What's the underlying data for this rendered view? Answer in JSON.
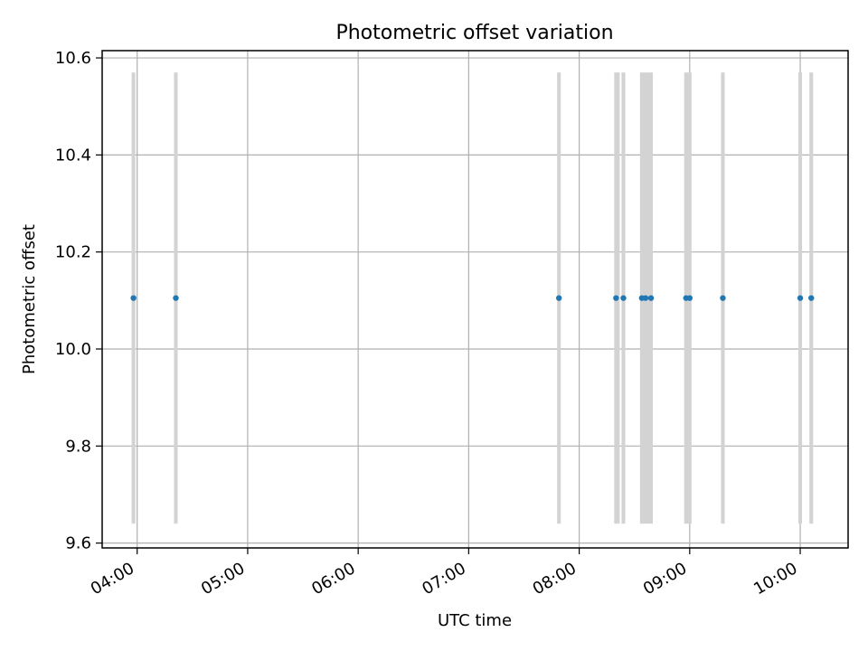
{
  "chart_data": {
    "type": "scatter",
    "title": "Photometric offset variation",
    "xlabel": "UTC time",
    "ylabel": "Photometric offset",
    "x_axis_type": "time",
    "xlim": [
      "03:41",
      "10:26"
    ],
    "ylim": [
      9.59,
      10.615
    ],
    "x_ticks": [
      "04:00",
      "05:00",
      "06:00",
      "07:00",
      "08:00",
      "09:00",
      "10:00"
    ],
    "y_ticks": [
      9.6,
      9.8,
      10.0,
      10.2,
      10.4,
      10.6
    ],
    "y_tick_labels": [
      "9.6",
      "9.8",
      "10.0",
      "10.2",
      "10.4",
      "10.6"
    ],
    "grid": true,
    "points": [
      {
        "x": "03:58",
        "y": 10.105
      },
      {
        "x": "04:21",
        "y": 10.105
      },
      {
        "x": "07:49",
        "y": 10.105
      },
      {
        "x": "08:20",
        "y": 10.105
      },
      {
        "x": "08:24",
        "y": 10.105
      },
      {
        "x": "08:34",
        "y": 10.105
      },
      {
        "x": "08:36",
        "y": 10.105
      },
      {
        "x": "08:39",
        "y": 10.105
      },
      {
        "x": "08:58",
        "y": 10.105
      },
      {
        "x": "09:00",
        "y": 10.105
      },
      {
        "x": "09:18",
        "y": 10.105
      },
      {
        "x": "10:00",
        "y": 10.105
      },
      {
        "x": "10:06",
        "y": 10.105
      }
    ],
    "error_bands": [
      {
        "start": "03:57",
        "end": "03:59",
        "y_low": 9.64,
        "y_high": 10.57
      },
      {
        "start": "04:20",
        "end": "04:22",
        "y_low": 9.64,
        "y_high": 10.57
      },
      {
        "start": "07:48",
        "end": "07:50",
        "y_low": 9.64,
        "y_high": 10.57
      },
      {
        "start": "08:19",
        "end": "08:22",
        "y_low": 9.64,
        "y_high": 10.57
      },
      {
        "start": "08:23",
        "end": "08:25",
        "y_low": 9.64,
        "y_high": 10.57
      },
      {
        "start": "08:33",
        "end": "08:40",
        "y_low": 9.64,
        "y_high": 10.57
      },
      {
        "start": "08:57",
        "end": "09:01",
        "y_low": 9.64,
        "y_high": 10.57
      },
      {
        "start": "09:17",
        "end": "09:19",
        "y_low": 9.64,
        "y_high": 10.57
      },
      {
        "start": "09:59",
        "end": "10:01",
        "y_low": 9.64,
        "y_high": 10.57
      },
      {
        "start": "10:05",
        "end": "10:07",
        "y_low": 9.64,
        "y_high": 10.57
      }
    ],
    "colors": {
      "points": "#1f77b4",
      "bands": "#d3d3d3",
      "grid": "#b0b0b0",
      "axes": "#000000"
    }
  }
}
